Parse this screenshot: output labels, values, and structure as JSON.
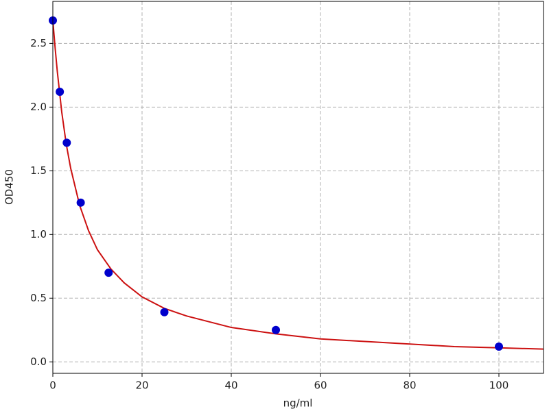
{
  "chart_data": {
    "type": "scatter",
    "x_label": "ng/ml",
    "y_label": "OD450",
    "series": [
      {
        "type": "scatter",
        "color": "#0000cc",
        "x": [
          0,
          1.5625,
          3.125,
          6.25,
          12.5,
          25,
          50,
          100
        ],
        "values": [
          2.68,
          2.12,
          1.72,
          1.25,
          0.7,
          0.39,
          0.25,
          0.12
        ]
      },
      {
        "type": "line",
        "color": "#cc1111",
        "x": [
          0,
          0.5,
          1,
          2,
          3,
          4,
          6,
          8,
          10,
          13,
          16,
          20,
          25,
          30,
          40,
          50,
          60,
          70,
          80,
          90,
          100,
          110
        ],
        "values": [
          2.68,
          2.47,
          2.28,
          1.96,
          1.71,
          1.52,
          1.23,
          1.03,
          0.88,
          0.73,
          0.62,
          0.51,
          0.42,
          0.36,
          0.27,
          0.22,
          0.18,
          0.16,
          0.14,
          0.12,
          0.11,
          0.1
        ]
      }
    ],
    "xlim": [
      0,
      110
    ],
    "xticks": [
      0,
      20,
      40,
      60,
      80,
      100
    ],
    "ylim": [
      -0.09,
      2.83
    ],
    "yticks": [
      {
        "value": 0,
        "label": "0.0"
      },
      0.5,
      {
        "value": 1,
        "label": "1.0"
      },
      1.5,
      {
        "value": 2,
        "label": "2.0"
      },
      2.5
    ],
    "grid": true
  }
}
